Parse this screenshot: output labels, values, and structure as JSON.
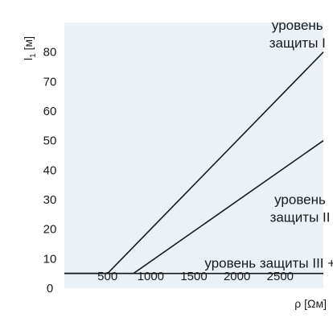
{
  "colors": {
    "background": "#ffffff",
    "plot_background": "#eaf1f7",
    "line": "#1a1a1a"
  },
  "chart_data": {
    "type": "line",
    "title": "",
    "xlabel": "ρ [Ωм]",
    "ylabel_main": "l",
    "ylabel_sub": "1",
    "ylabel_unit": "[м]",
    "xlim": [
      0,
      3000
    ],
    "ylim": [
      0,
      90
    ],
    "x_ticks": [
      500,
      1000,
      1500,
      2000,
      2500
    ],
    "y_ticks": [
      0,
      10,
      20,
      30,
      40,
      50,
      60,
      70,
      80
    ],
    "grid": false,
    "series": [
      {
        "id": "level1",
        "x": [
          0,
          500,
          3000
        ],
        "y": [
          5,
          5,
          80
        ]
      },
      {
        "id": "level2",
        "x": [
          0,
          800,
          3000
        ],
        "y": [
          5,
          5,
          50
        ]
      },
      {
        "id": "level34",
        "x": [
          0,
          3000
        ],
        "y": [
          5,
          5
        ]
      }
    ],
    "annotations": [
      {
        "series": "level1",
        "lines": [
          "уровень",
          "защиты I"
        ],
        "x": 2700,
        "y": 87.5,
        "anchor": "middle"
      },
      {
        "series": "level2",
        "lines": [
          "уровень",
          "защиты II"
        ],
        "x": 2730,
        "y": 28.5,
        "anchor": "middle"
      },
      {
        "series": "level34",
        "lines": [
          "уровень защиты III + IV"
        ],
        "x": 2480,
        "y": 7,
        "anchor": "middle"
      }
    ]
  }
}
